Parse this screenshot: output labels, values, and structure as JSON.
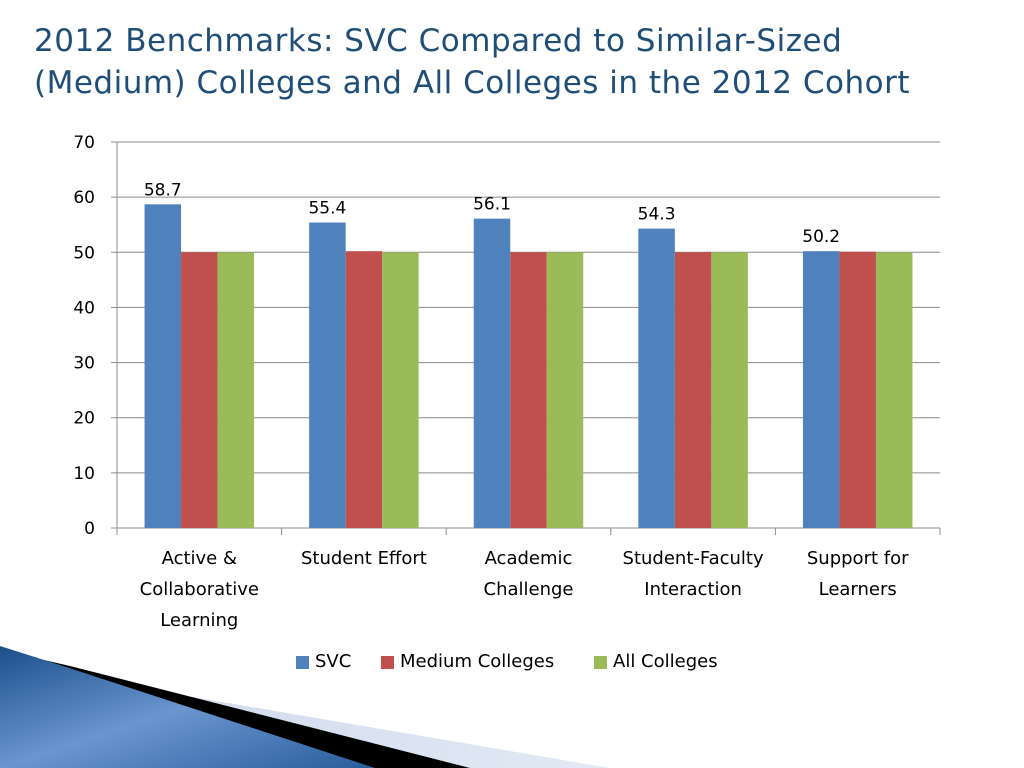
{
  "slide": {
    "title_line1": "2012 Benchmarks:  SVC Compared to Similar-Sized",
    "title_line2": "(Medium) Colleges and All Colleges in the 2012 Cohort"
  },
  "colors": {
    "title": "#1f4e79",
    "svc": "#4f81bd",
    "medium": "#c0504d",
    "all": "#9bbb59",
    "grid": "#8c8c8c"
  },
  "chart_data": {
    "type": "bar",
    "title": "",
    "xlabel": "",
    "ylabel": "",
    "ylim": [
      0,
      70
    ],
    "yticks": [
      0,
      10,
      20,
      30,
      40,
      50,
      60,
      70
    ],
    "grid": true,
    "legend_position": "bottom",
    "categories": [
      [
        "Active &",
        "Collaborative",
        "Learning"
      ],
      [
        "Student Effort"
      ],
      [
        "Academic",
        "Challenge"
      ],
      [
        "Student-Faculty",
        "Interaction"
      ],
      [
        "Support for",
        "Learners"
      ]
    ],
    "series": [
      {
        "name": "SVC",
        "color": "#4f81bd",
        "values": [
          58.7,
          55.4,
          56.1,
          54.3,
          50.2
        ],
        "labels": [
          "58.7",
          "55.4",
          "56.1",
          "54.3",
          "50.2"
        ]
      },
      {
        "name": "Medium Colleges",
        "color": "#c0504d",
        "values": [
          50.0,
          50.2,
          50.0,
          50.0,
          50.1
        ]
      },
      {
        "name": "All Colleges",
        "color": "#9bbb59",
        "values": [
          50,
          50,
          50,
          50,
          50
        ]
      }
    ]
  }
}
